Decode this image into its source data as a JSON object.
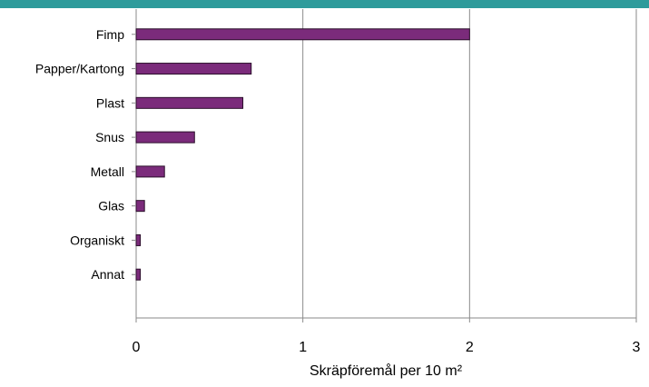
{
  "header": {
    "band_color": "#2e9b9b"
  },
  "chart_data": {
    "type": "bar",
    "orientation": "horizontal",
    "categories": [
      "Fimp",
      "Papper/Kartong",
      "Plast",
      "Snus",
      "Metall",
      "Glas",
      "Organiskt",
      "Annat"
    ],
    "values": [
      2.0,
      0.69,
      0.64,
      0.35,
      0.17,
      0.05,
      0.025,
      0.025
    ],
    "xlabel": "Skräpföremål per 10 m²",
    "ylabel": "",
    "xlim": [
      0,
      3
    ],
    "xticks": [
      "0",
      "1",
      "2",
      "3"
    ],
    "grid": "vertical",
    "legend": "none",
    "bar_color": "#7b2b7b",
    "bar_border": "#2b0f2b"
  }
}
